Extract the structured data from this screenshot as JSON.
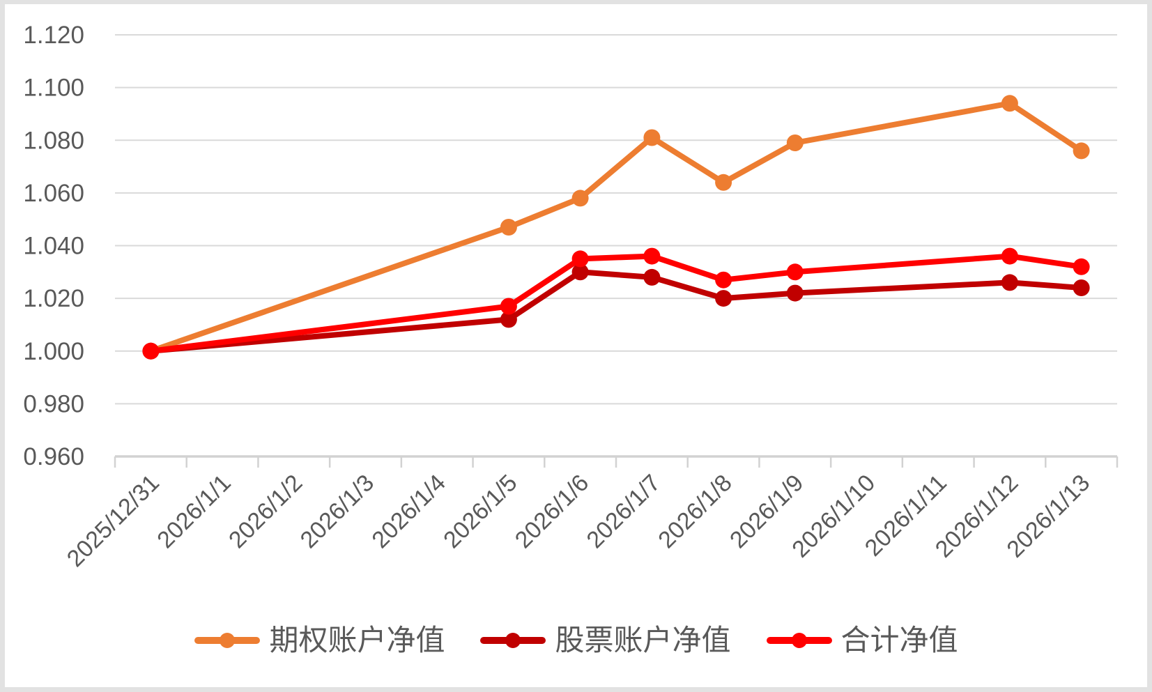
{
  "colors": {
    "page_frame": "#E2E2E2",
    "chart_background": "#FFFFFF",
    "gridline": "#D9D9D9",
    "axis": "#D2D2D2",
    "tick": "#D2D2D2",
    "text": "#595959"
  },
  "chart_data": {
    "type": "line",
    "title": "",
    "xlabel": "",
    "ylabel": "",
    "grid": true,
    "legend_position": "bottom",
    "ylim": [
      0.96,
      1.12
    ],
    "ytick_step": 0.02,
    "ytick_labels": [
      "0.960",
      "0.980",
      "1.000",
      "1.020",
      "1.040",
      "1.060",
      "1.080",
      "1.100",
      "1.120"
    ],
    "categories": [
      "2025/12/31",
      "2026/1/1",
      "2026/1/2",
      "2026/1/3",
      "2026/1/4",
      "2026/1/5",
      "2026/1/6",
      "2026/1/7",
      "2026/1/8",
      "2026/1/9",
      "2026/1/10",
      "2026/1/11",
      "2026/1/12",
      "2026/1/13"
    ],
    "series": [
      {
        "name": "期权账户净值",
        "color": "#ED7D31",
        "values": [
          1.0,
          null,
          null,
          null,
          null,
          1.047,
          1.058,
          1.081,
          1.064,
          1.079,
          null,
          null,
          1.094,
          1.076
        ]
      },
      {
        "name": "股票账户净值",
        "color": "#C00000",
        "values": [
          1.0,
          null,
          null,
          null,
          null,
          1.012,
          1.03,
          1.028,
          1.02,
          1.022,
          null,
          null,
          1.026,
          1.024
        ]
      },
      {
        "name": "合计净值",
        "color": "#FF0000",
        "values": [
          1.0,
          null,
          null,
          null,
          null,
          1.017,
          1.035,
          1.036,
          1.027,
          1.03,
          null,
          null,
          1.036,
          1.032
        ]
      }
    ]
  }
}
